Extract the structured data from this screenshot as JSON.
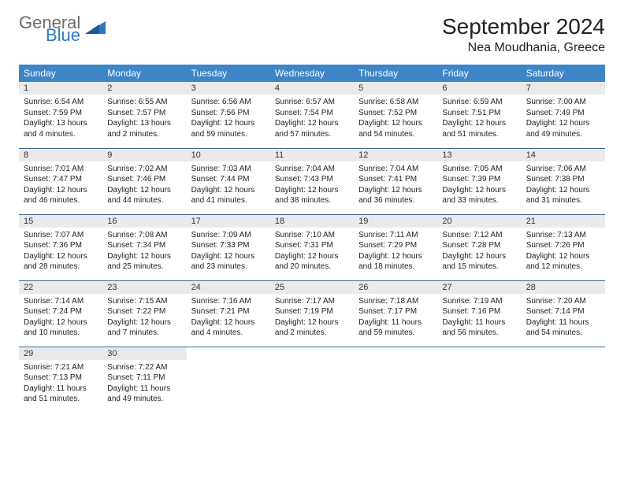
{
  "logo": {
    "general": "General",
    "blue": "Blue"
  },
  "title": "September 2024",
  "location": "Nea Moudhania, Greece",
  "colors": {
    "header_bg": "#3d85c6",
    "header_fg": "#ffffff",
    "daynum_bg": "#eaeaea",
    "row_border": "#3d6a9a",
    "logo_gray": "#6b6b6b",
    "logo_blue": "#2d78c2"
  },
  "weekdays": [
    "Sunday",
    "Monday",
    "Tuesday",
    "Wednesday",
    "Thursday",
    "Friday",
    "Saturday"
  ],
  "days": [
    {
      "n": "1",
      "sunrise": "6:54 AM",
      "sunset": "7:59 PM",
      "dl": "13 hours and 4 minutes."
    },
    {
      "n": "2",
      "sunrise": "6:55 AM",
      "sunset": "7:57 PM",
      "dl": "13 hours and 2 minutes."
    },
    {
      "n": "3",
      "sunrise": "6:56 AM",
      "sunset": "7:56 PM",
      "dl": "12 hours and 59 minutes."
    },
    {
      "n": "4",
      "sunrise": "6:57 AM",
      "sunset": "7:54 PM",
      "dl": "12 hours and 57 minutes."
    },
    {
      "n": "5",
      "sunrise": "6:58 AM",
      "sunset": "7:52 PM",
      "dl": "12 hours and 54 minutes."
    },
    {
      "n": "6",
      "sunrise": "6:59 AM",
      "sunset": "7:51 PM",
      "dl": "12 hours and 51 minutes."
    },
    {
      "n": "7",
      "sunrise": "7:00 AM",
      "sunset": "7:49 PM",
      "dl": "12 hours and 49 minutes."
    },
    {
      "n": "8",
      "sunrise": "7:01 AM",
      "sunset": "7:47 PM",
      "dl": "12 hours and 46 minutes."
    },
    {
      "n": "9",
      "sunrise": "7:02 AM",
      "sunset": "7:46 PM",
      "dl": "12 hours and 44 minutes."
    },
    {
      "n": "10",
      "sunrise": "7:03 AM",
      "sunset": "7:44 PM",
      "dl": "12 hours and 41 minutes."
    },
    {
      "n": "11",
      "sunrise": "7:04 AM",
      "sunset": "7:43 PM",
      "dl": "12 hours and 38 minutes."
    },
    {
      "n": "12",
      "sunrise": "7:04 AM",
      "sunset": "7:41 PM",
      "dl": "12 hours and 36 minutes."
    },
    {
      "n": "13",
      "sunrise": "7:05 AM",
      "sunset": "7:39 PM",
      "dl": "12 hours and 33 minutes."
    },
    {
      "n": "14",
      "sunrise": "7:06 AM",
      "sunset": "7:38 PM",
      "dl": "12 hours and 31 minutes."
    },
    {
      "n": "15",
      "sunrise": "7:07 AM",
      "sunset": "7:36 PM",
      "dl": "12 hours and 28 minutes."
    },
    {
      "n": "16",
      "sunrise": "7:08 AM",
      "sunset": "7:34 PM",
      "dl": "12 hours and 25 minutes."
    },
    {
      "n": "17",
      "sunrise": "7:09 AM",
      "sunset": "7:33 PM",
      "dl": "12 hours and 23 minutes."
    },
    {
      "n": "18",
      "sunrise": "7:10 AM",
      "sunset": "7:31 PM",
      "dl": "12 hours and 20 minutes."
    },
    {
      "n": "19",
      "sunrise": "7:11 AM",
      "sunset": "7:29 PM",
      "dl": "12 hours and 18 minutes."
    },
    {
      "n": "20",
      "sunrise": "7:12 AM",
      "sunset": "7:28 PM",
      "dl": "12 hours and 15 minutes."
    },
    {
      "n": "21",
      "sunrise": "7:13 AM",
      "sunset": "7:26 PM",
      "dl": "12 hours and 12 minutes."
    },
    {
      "n": "22",
      "sunrise": "7:14 AM",
      "sunset": "7:24 PM",
      "dl": "12 hours and 10 minutes."
    },
    {
      "n": "23",
      "sunrise": "7:15 AM",
      "sunset": "7:22 PM",
      "dl": "12 hours and 7 minutes."
    },
    {
      "n": "24",
      "sunrise": "7:16 AM",
      "sunset": "7:21 PM",
      "dl": "12 hours and 4 minutes."
    },
    {
      "n": "25",
      "sunrise": "7:17 AM",
      "sunset": "7:19 PM",
      "dl": "12 hours and 2 minutes."
    },
    {
      "n": "26",
      "sunrise": "7:18 AM",
      "sunset": "7:17 PM",
      "dl": "11 hours and 59 minutes."
    },
    {
      "n": "27",
      "sunrise": "7:19 AM",
      "sunset": "7:16 PM",
      "dl": "11 hours and 56 minutes."
    },
    {
      "n": "28",
      "sunrise": "7:20 AM",
      "sunset": "7:14 PM",
      "dl": "11 hours and 54 minutes."
    },
    {
      "n": "29",
      "sunrise": "7:21 AM",
      "sunset": "7:13 PM",
      "dl": "11 hours and 51 minutes."
    },
    {
      "n": "30",
      "sunrise": "7:22 AM",
      "sunset": "7:11 PM",
      "dl": "11 hours and 49 minutes."
    }
  ],
  "labels": {
    "sunrise": "Sunrise:",
    "sunset": "Sunset:",
    "daylight": "Daylight:"
  },
  "layout": {
    "first_weekday_index": 0,
    "cols": 7
  }
}
